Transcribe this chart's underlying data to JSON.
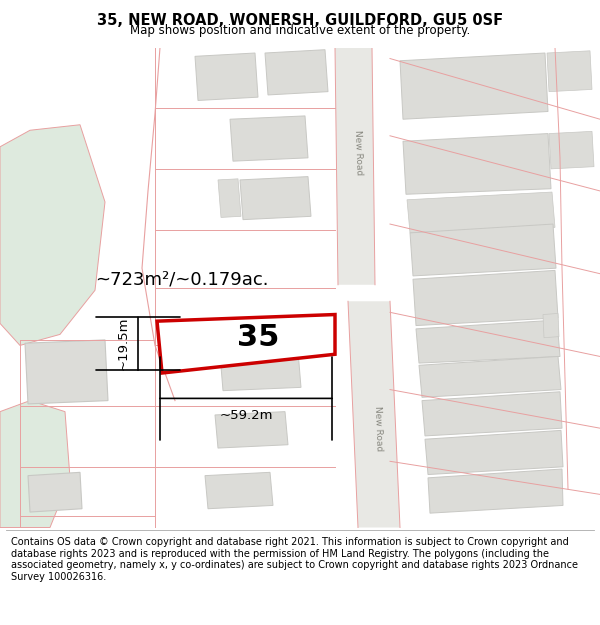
{
  "title_line1": "35, NEW ROAD, WONERSH, GUILDFORD, GU5 0SF",
  "title_line2": "Map shows position and indicative extent of the property.",
  "footer_text": "Contains OS data © Crown copyright and database right 2021. This information is subject to Crown copyright and database rights 2023 and is reproduced with the permission of HM Land Registry. The polygons (including the associated geometry, namely x, y co-ordinates) are subject to Crown copyright and database rights 2023 Ordnance Survey 100026316.",
  "property_number": "35",
  "area_label": "~723m²/~0.179ac.",
  "width_label": "~59.2m",
  "height_label": "~19.5m",
  "map_bg": "#f2f2ef",
  "road_color": "#e8e8e4",
  "boundary_color": "#e8a0a0",
  "green_color": "#deeade",
  "block_fill": "#dcdcd8",
  "block_edge": "#c8c8c4",
  "property_edge": "#cc0000",
  "road_label_color": "#888880"
}
